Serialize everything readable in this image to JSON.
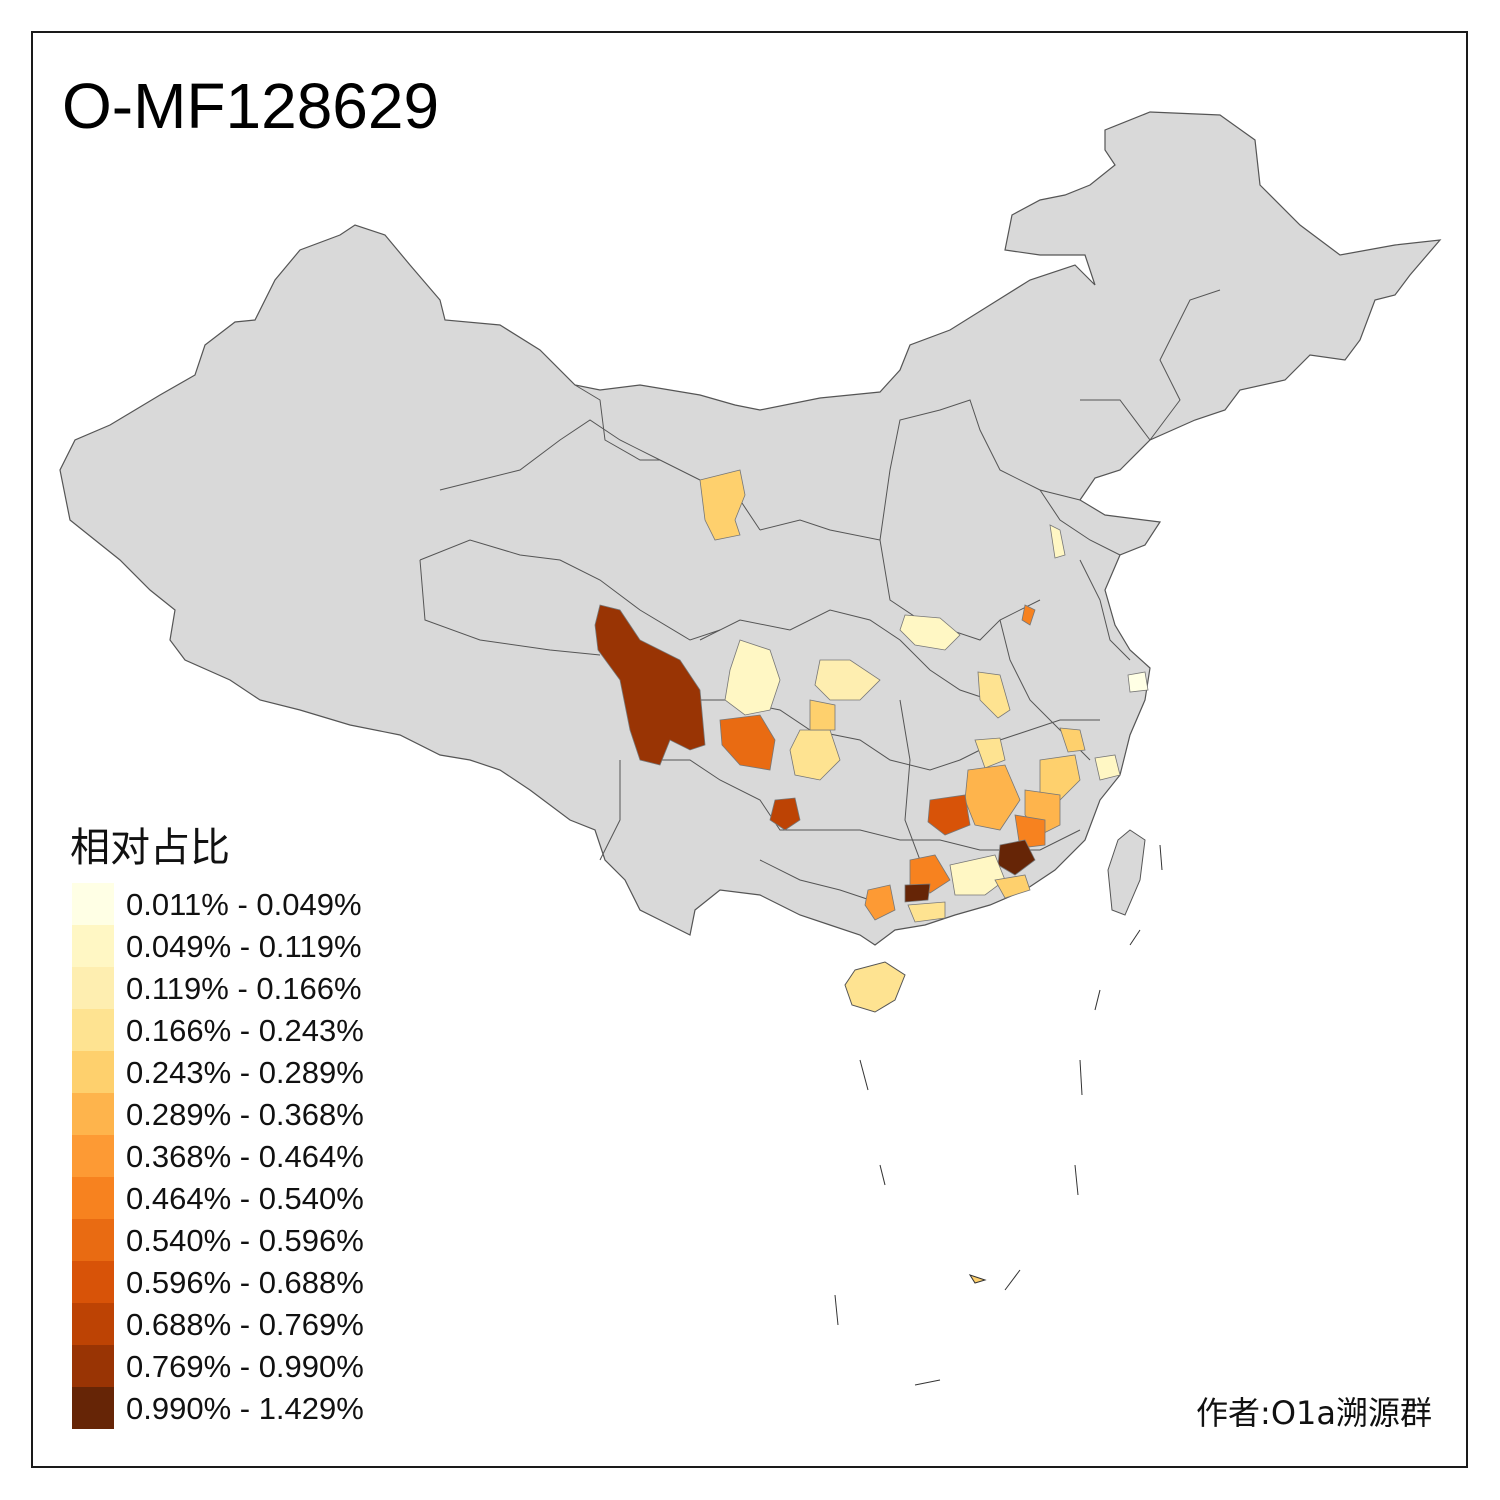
{
  "title": "O-MF128629",
  "legend": {
    "title": "相对占比",
    "bins": [
      {
        "label": "0.011% - 0.049%",
        "color": "#ffffe5"
      },
      {
        "label": "0.049% - 0.119%",
        "color": "#fff7c4"
      },
      {
        "label": "0.119% - 0.166%",
        "color": "#feeeb0"
      },
      {
        "label": "0.166% - 0.243%",
        "color": "#fee391"
      },
      {
        "label": "0.243% - 0.289%",
        "color": "#fed06d"
      },
      {
        "label": "0.289% - 0.368%",
        "color": "#feb44c"
      },
      {
        "label": "0.368% - 0.464%",
        "color": "#fd9a34"
      },
      {
        "label": "0.464% - 0.540%",
        "color": "#f7821f"
      },
      {
        "label": "0.540% - 0.596%",
        "color": "#e96b12"
      },
      {
        "label": "0.596% - 0.688%",
        "color": "#d85308"
      },
      {
        "label": "0.688% - 0.769%",
        "color": "#bd4304"
      },
      {
        "label": "0.769% - 0.990%",
        "color": "#993404"
      },
      {
        "label": "0.990% - 1.429%",
        "color": "#662506"
      }
    ]
  },
  "author": "作者:O1a溯源群",
  "colors": {
    "land": "#d9d9d9",
    "border": "#555555",
    "no_data": "#d9d9d9"
  }
}
